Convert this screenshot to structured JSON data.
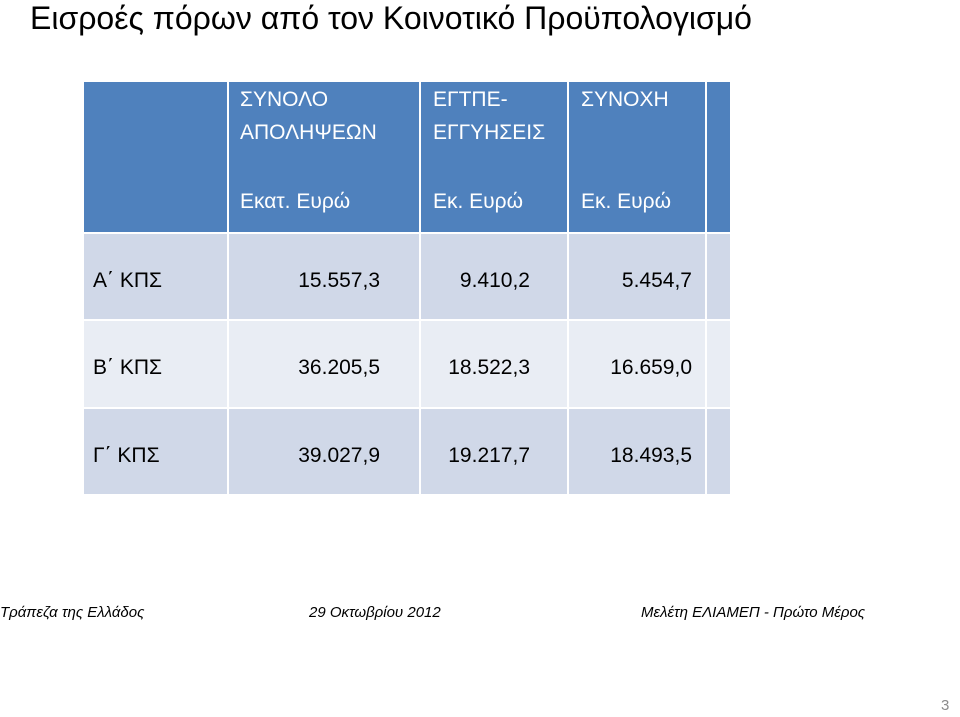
{
  "title": "Εισροές πόρων από τον Κοινοτικό Προϋπολογισμό",
  "table": {
    "columns": [
      {
        "heading": [
          "ΣΥΝΟΛΟ",
          "ΑΠΟΛΗΨΕΩΝ"
        ],
        "unit": "Εκατ. Ευρώ"
      },
      {
        "heading": [
          "ΕΓΤΠΕ-",
          "ΕΓΓΥΗΣΕΙΣ"
        ],
        "unit": "Εκ. Ευρώ"
      },
      {
        "heading": [
          "ΣΥΝΟΧΗ"
        ],
        "unit": "Εκ. Ευρώ"
      }
    ],
    "rows": [
      [
        "Α΄ ΚΠΣ",
        "15.557,3",
        "9.410,2",
        "5.454,7"
      ],
      [
        "Β΄ ΚΠΣ",
        "36.205,5",
        "18.522,3",
        "16.659,0"
      ],
      [
        "Γ΄ ΚΠΣ",
        "39.027,9",
        "19.217,7",
        "18.493,5"
      ]
    ]
  },
  "footer": {
    "left": "Τράπεζα της Ελλάδος",
    "center": "29 Οκτωβρίου 2012",
    "right": "Μελέτη ΕΛΙΑΜΕΠ - Πρώτο Μέρος"
  },
  "page_number": "3"
}
